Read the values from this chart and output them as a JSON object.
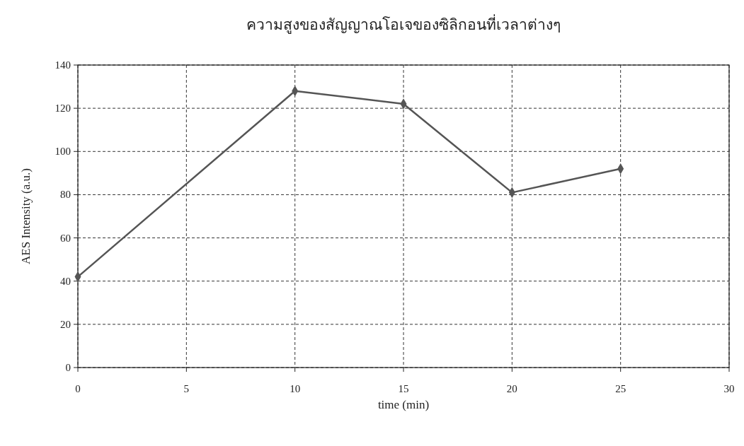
{
  "chart_data": {
    "type": "line",
    "title": "ความสูงของสัญญาณโอเจของซิลิกอนที่เวลาต่างๆ",
    "xlabel": "time (min)",
    "ylabel": "AES Intensity (a.u.)",
    "x": [
      0,
      10,
      15,
      20,
      25
    ],
    "series": [
      {
        "color": "#555555",
        "values": [
          42,
          128,
          122,
          81,
          92
        ]
      }
    ],
    "xlim": [
      0,
      30
    ],
    "xticks": [
      0,
      5,
      10,
      15,
      20,
      25,
      30
    ],
    "ylim": [
      0,
      140
    ],
    "yticks": [
      0,
      20,
      40,
      60,
      80,
      100,
      120,
      140
    ],
    "grid": true,
    "marker": "diamond",
    "line_style": "solid"
  }
}
